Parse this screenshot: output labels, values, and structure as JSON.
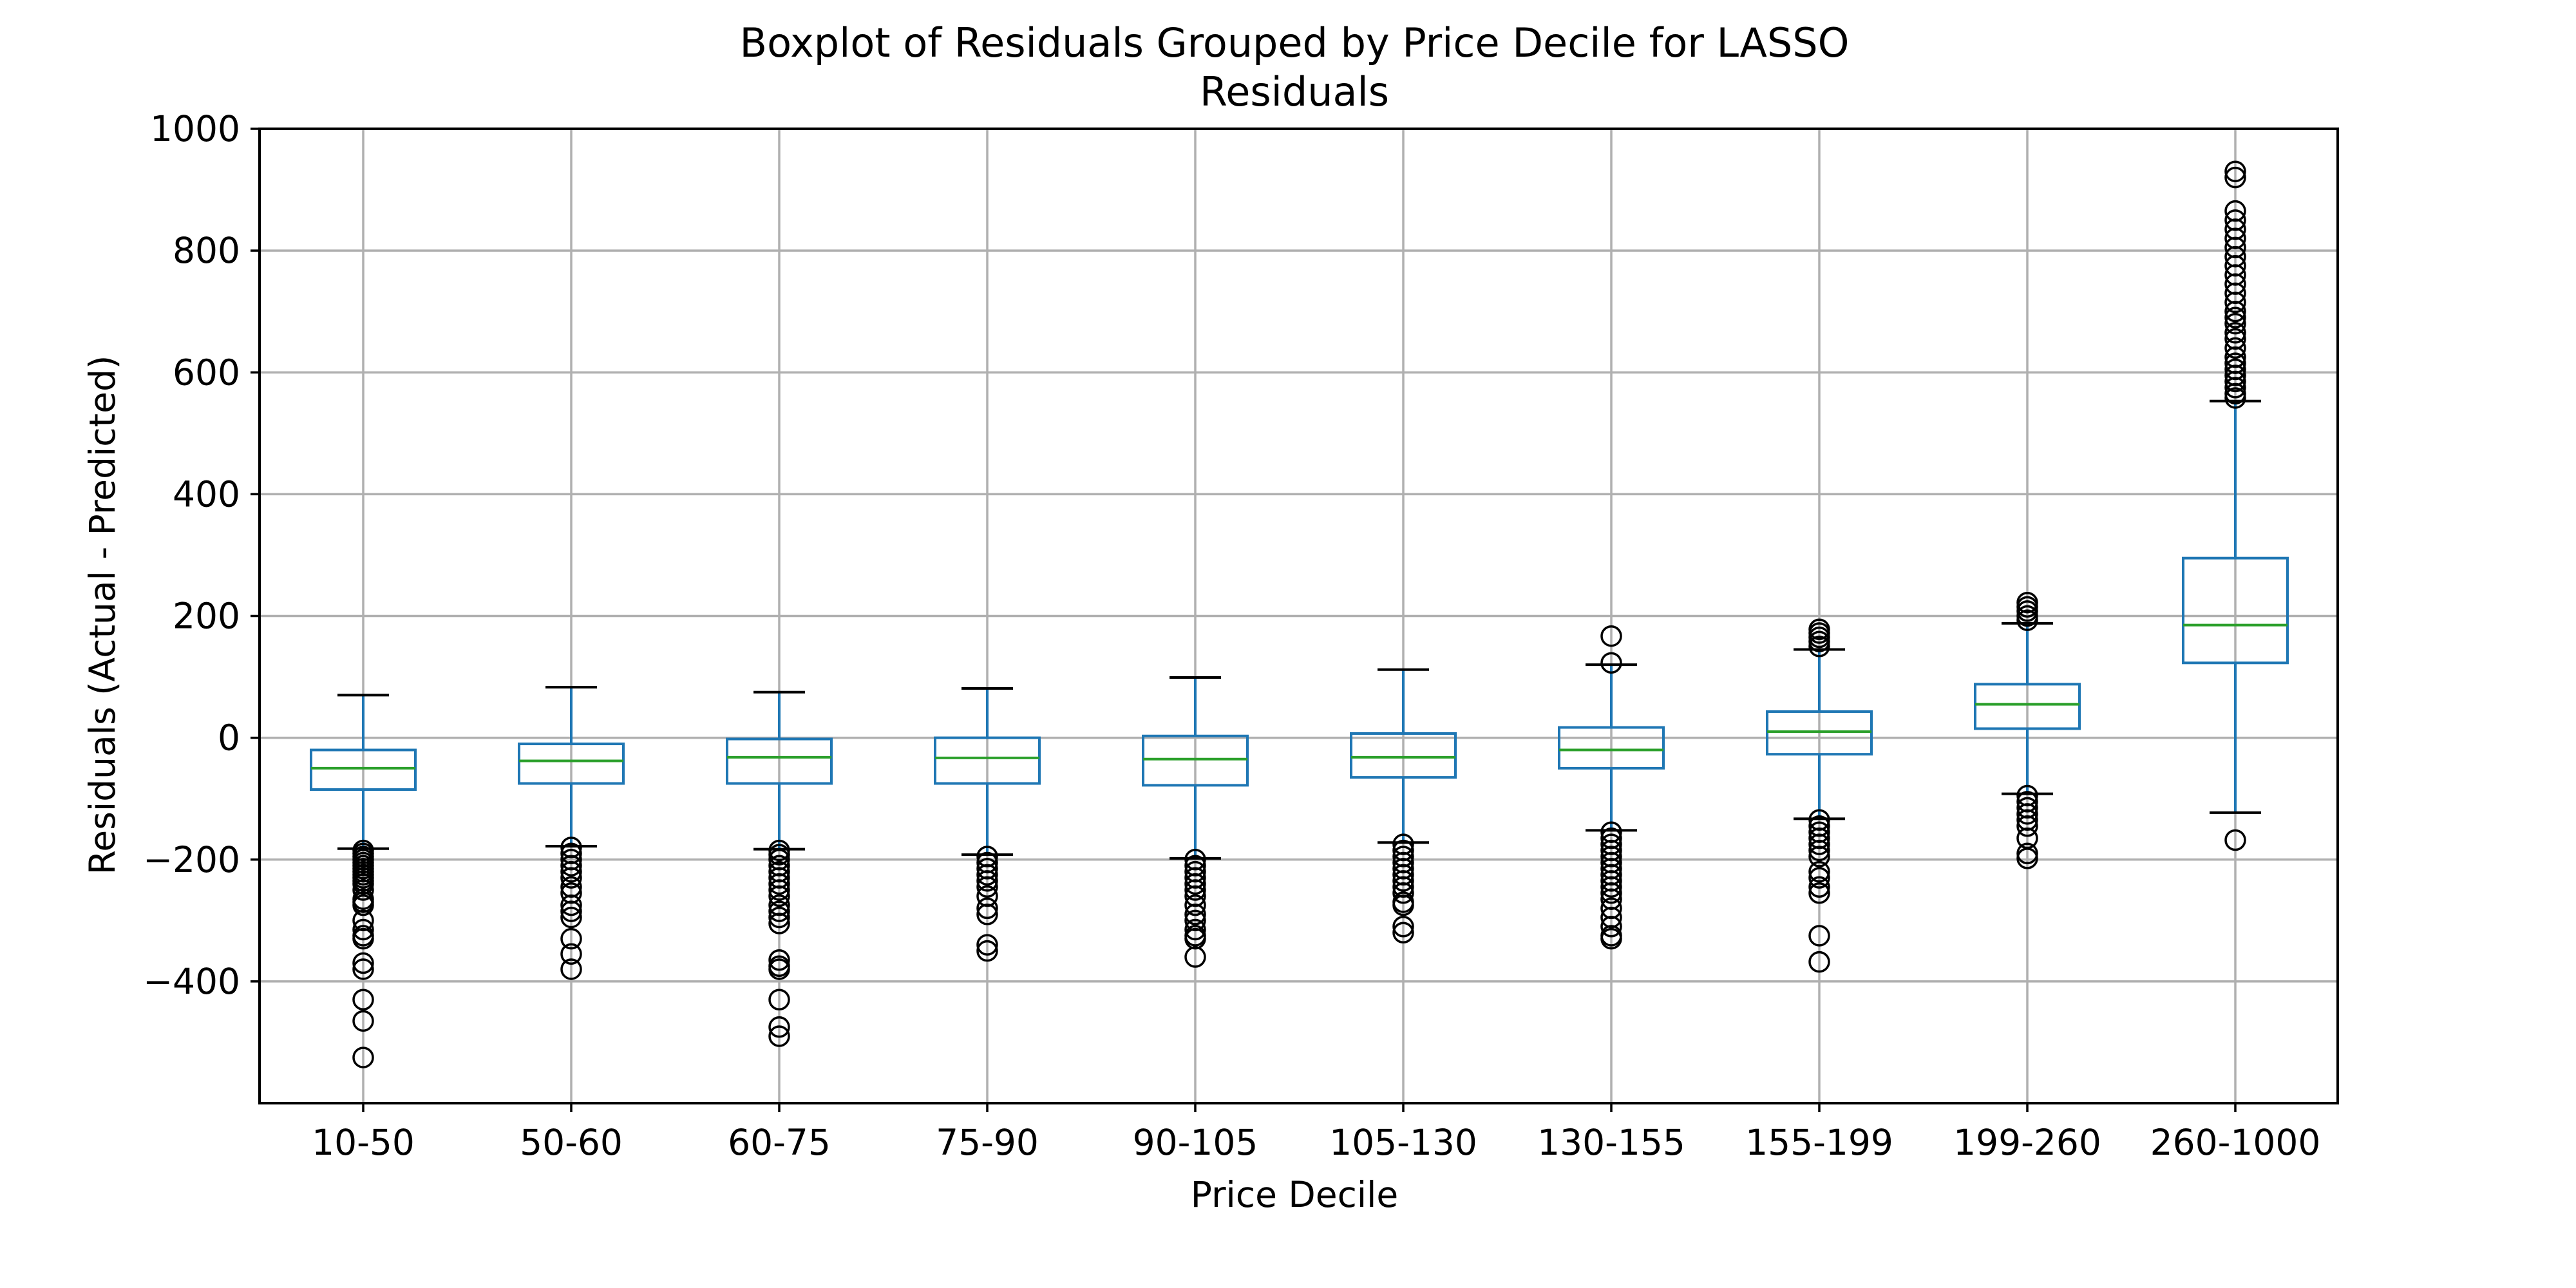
{
  "chart_data": {
    "type": "boxplot",
    "title_line1": "Boxplot of Residuals Grouped by Price Decile for LASSO",
    "title_line2": "Residuals",
    "xlabel": "Price Decile",
    "ylabel": "Residuals (Actual - Predicted)",
    "ylim": [
      -600,
      1000
    ],
    "yticks": [
      -400,
      -200,
      0,
      200,
      400,
      600,
      800,
      1000
    ],
    "grid": true,
    "colors": {
      "box": "#1f77b4",
      "median": "#2ca02c",
      "whisker": "#1f77b4",
      "cap": "#000000",
      "flier": "#000000",
      "grid": "#b0b0b0"
    },
    "categories": [
      "10-50",
      "50-60",
      "60-75",
      "75-90",
      "90-105",
      "105-130",
      "130-155",
      "155-199",
      "199-260",
      "260-1000"
    ],
    "boxes": [
      {
        "category": "10-50",
        "whisker_low": -182,
        "q1": -85,
        "median": -50,
        "q3": -20,
        "whisker_high": 70,
        "fliers": [
          -185,
          -190,
          -195,
          -200,
          -205,
          -210,
          -215,
          -220,
          -225,
          -230,
          -235,
          -240,
          -250,
          -265,
          -270,
          -275,
          -300,
          -315,
          -325,
          -330,
          -370,
          -380,
          -430,
          -465,
          -525
        ]
      },
      {
        "category": "50-60",
        "whisker_low": -178,
        "q1": -75,
        "median": -38,
        "q3": -10,
        "whisker_high": 83,
        "fliers": [
          -180,
          -190,
          -200,
          -210,
          -220,
          -230,
          -245,
          -255,
          -275,
          -285,
          -295,
          -330,
          -355,
          -380
        ]
      },
      {
        "category": "60-75",
        "whisker_low": -183,
        "q1": -75,
        "median": -32,
        "q3": -2,
        "whisker_high": 75,
        "fliers": [
          -185,
          -192,
          -200,
          -210,
          -220,
          -230,
          -240,
          -250,
          -260,
          -275,
          -285,
          -295,
          -305,
          -365,
          -375,
          -380,
          -430,
          -475,
          -490
        ]
      },
      {
        "category": "75-90",
        "whisker_low": -192,
        "q1": -75,
        "median": -33,
        "q3": 0,
        "whisker_high": 81,
        "fliers": [
          -195,
          -205,
          -215,
          -225,
          -235,
          -245,
          -260,
          -280,
          -290,
          -340,
          -350
        ]
      },
      {
        "category": "90-105",
        "whisker_low": -198,
        "q1": -78,
        "median": -35,
        "q3": 3,
        "whisker_high": 99,
        "fliers": [
          -200,
          -210,
          -220,
          -230,
          -240,
          -250,
          -260,
          -275,
          -290,
          -300,
          -315,
          -325,
          -330,
          -360
        ]
      },
      {
        "category": "105-130",
        "whisker_low": -172,
        "q1": -65,
        "median": -32,
        "q3": 7,
        "whisker_high": 112,
        "fliers": [
          -175,
          -185,
          -195,
          -205,
          -215,
          -225,
          -235,
          -245,
          -255,
          -270,
          -275,
          -310,
          -320
        ]
      },
      {
        "category": "130-155",
        "whisker_low": -152,
        "q1": -50,
        "median": -20,
        "q3": 17,
        "whisker_high": 120,
        "fliers": [
          123,
          167,
          -155,
          -165,
          -175,
          -185,
          -195,
          -205,
          -215,
          -225,
          -235,
          -245,
          -255,
          -265,
          -280,
          -295,
          -310,
          -325,
          -330
        ]
      },
      {
        "category": "155-199",
        "whisker_low": -133,
        "q1": -27,
        "median": 10,
        "q3": 43,
        "whisker_high": 145,
        "fliers": [
          150,
          158,
          165,
          172,
          178,
          -135,
          -145,
          -155,
          -165,
          -175,
          -185,
          -195,
          -220,
          -230,
          -245,
          -255,
          -325,
          -368
        ]
      },
      {
        "category": "199-260",
        "whisker_low": -92,
        "q1": 15,
        "median": 55,
        "q3": 88,
        "whisker_high": 188,
        "fliers": [
          193,
          200,
          208,
          215,
          222,
          -95,
          -105,
          -115,
          -125,
          -135,
          -145,
          -165,
          -190,
          -198
        ]
      },
      {
        "category": "260-1000",
        "whisker_low": -123,
        "q1": 123,
        "median": 185,
        "q3": 295,
        "whisker_high": 553,
        "fliers": [
          558,
          565,
          575,
          585,
          595,
          605,
          615,
          625,
          640,
          655,
          665,
          680,
          690,
          700,
          715,
          730,
          745,
          760,
          775,
          790,
          805,
          820,
          835,
          850,
          865,
          920,
          930,
          -168
        ]
      }
    ]
  }
}
